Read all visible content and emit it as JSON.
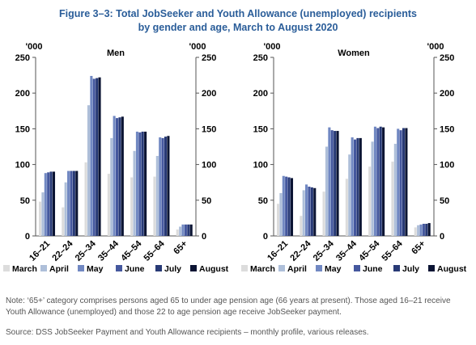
{
  "title_line1": "Figure 3–3: Total JobSeeker and Youth Allowance (unemployed) recipients",
  "title_line2": "by gender and age, March to August 2020",
  "unit_label": "'000",
  "note": "Note: ‘65+’ category comprises persons aged 65 to under age pension age (66 years at present).  Those aged 16–21 receive Youth Allowance (unemployed) and those 22 to age pension age receive JobSeeker payment.",
  "source": "Source: DSS JobSeeker Payment and Youth Allowance recipients – monthly profile, various releases.",
  "chart_data": [
    {
      "type": "bar",
      "title": "Men",
      "categories": [
        "16–21",
        "22–24",
        "25–34",
        "35–44",
        "45–54",
        "55–64",
        "65+"
      ],
      "ylim": [
        0,
        250
      ],
      "yticks": [
        0,
        50,
        100,
        150,
        200,
        250
      ],
      "ylabel": "'000",
      "legend_position": "bottom",
      "grid": false,
      "series": [
        {
          "name": "March",
          "color": "#dcdcdc",
          "values": [
            48,
            40,
            103,
            87,
            82,
            83,
            9
          ]
        },
        {
          "name": "April",
          "color": "#aebfd9",
          "values": [
            61,
            75,
            183,
            137,
            119,
            112,
            13
          ]
        },
        {
          "name": "May",
          "color": "#7188c2",
          "values": [
            88,
            91,
            224,
            168,
            146,
            138,
            16
          ]
        },
        {
          "name": "June",
          "color": "#45589e",
          "values": [
            89,
            91,
            220,
            165,
            145,
            137,
            16
          ]
        },
        {
          "name": "July",
          "color": "#283a76",
          "values": [
            90,
            91,
            221,
            166,
            146,
            139,
            16
          ]
        },
        {
          "name": "August",
          "color": "#0b1433",
          "values": [
            90,
            91,
            222,
            167,
            146,
            140,
            16
          ]
        }
      ]
    },
    {
      "type": "bar",
      "title": "Women",
      "categories": [
        "16–21",
        "22–24",
        "25–34",
        "35–44",
        "45–54",
        "55–64",
        "65+"
      ],
      "ylim": [
        0,
        250
      ],
      "yticks": [
        0,
        50,
        100,
        150,
        200,
        250
      ],
      "ylabel": "'000",
      "legend_position": "bottom",
      "grid": false,
      "series": [
        {
          "name": "March",
          "color": "#dcdcdc",
          "values": [
            45,
            28,
            62,
            80,
            97,
            104,
            12
          ]
        },
        {
          "name": "April",
          "color": "#aebfd9",
          "values": [
            60,
            64,
            125,
            114,
            132,
            129,
            15
          ]
        },
        {
          "name": "May",
          "color": "#7188c2",
          "values": [
            84,
            72,
            152,
            138,
            153,
            150,
            16
          ]
        },
        {
          "name": "June",
          "color": "#45589e",
          "values": [
            83,
            69,
            148,
            135,
            151,
            148,
            17
          ]
        },
        {
          "name": "July",
          "color": "#283a76",
          "values": [
            82,
            68,
            147,
            137,
            153,
            151,
            17
          ]
        },
        {
          "name": "August",
          "color": "#0b1433",
          "values": [
            81,
            67,
            147,
            137,
            152,
            151,
            18
          ]
        }
      ]
    }
  ]
}
